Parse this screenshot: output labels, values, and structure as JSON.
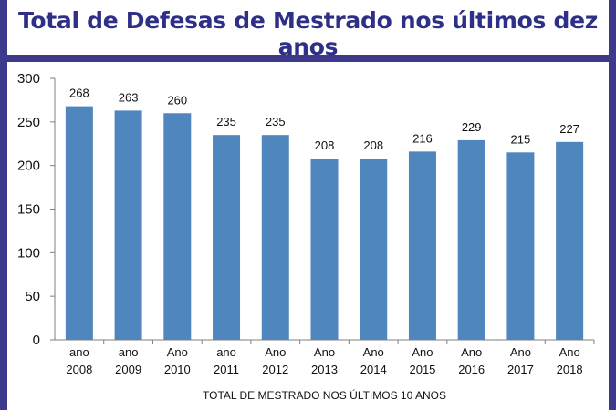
{
  "header": {
    "title": "Total de Defesas de Mestrado nos últimos dez anos"
  },
  "colors": {
    "background": "#3d3a8c",
    "title": "#2e2f86",
    "bar": "#4f86be"
  },
  "chart_data": {
    "type": "bar",
    "title": "",
    "xlabel": "TOTAL DE MESTRADO NOS ÚLTIMOS 10 ANOS",
    "ylabel": "",
    "ylim": [
      0,
      300
    ],
    "yticks": [
      0,
      50,
      100,
      150,
      200,
      250,
      300
    ],
    "grid": false,
    "categories": [
      [
        "ano",
        "2008"
      ],
      [
        "ano",
        "2009"
      ],
      [
        "Ano",
        "2010"
      ],
      [
        "ano",
        "2011"
      ],
      [
        "Ano",
        "2012"
      ],
      [
        "Ano",
        "2013"
      ],
      [
        "Ano",
        "2014"
      ],
      [
        "Ano",
        "2015"
      ],
      [
        "Ano",
        "2016"
      ],
      [
        "Ano",
        "2017"
      ],
      [
        "Ano",
        "2018"
      ]
    ],
    "values": [
      268,
      263,
      260,
      235,
      235,
      208,
      208,
      216,
      229,
      215,
      227
    ]
  }
}
